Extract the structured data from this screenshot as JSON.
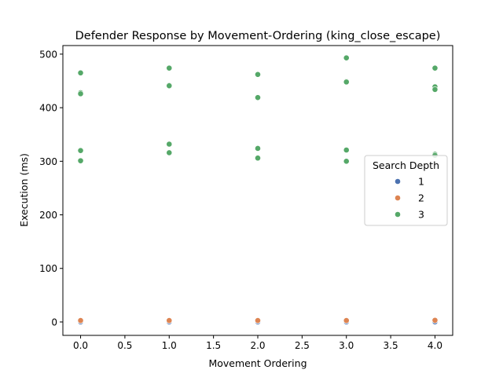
{
  "chart_data": {
    "type": "scatter",
    "title": "Defender Response by Movement-Ordering (king_close_escape)",
    "xlabel": "Movement Ordering",
    "ylabel": "Execution (ms)",
    "xlim": [
      -0.2,
      4.2
    ],
    "ylim": [
      -25,
      516
    ],
    "x_ticks": [
      0.0,
      0.5,
      1.0,
      1.5,
      2.0,
      2.5,
      3.0,
      3.5,
      4.0
    ],
    "x_tick_labels": [
      "0.0",
      "0.5",
      "1.0",
      "1.5",
      "2.0",
      "2.5",
      "3.0",
      "3.5",
      "4.0"
    ],
    "y_ticks": [
      0,
      100,
      200,
      300,
      400,
      500
    ],
    "y_tick_labels": [
      "0",
      "100",
      "200",
      "300",
      "400",
      "500"
    ],
    "grid": false,
    "legend": {
      "title": "Search Depth",
      "placement": "center-right"
    },
    "series": [
      {
        "name": "1",
        "color": "#4c72b0",
        "points": [
          [
            0,
            0.2
          ],
          [
            0,
            0.4
          ],
          [
            0,
            0.3
          ],
          [
            1,
            0.2
          ],
          [
            1,
            0.4
          ],
          [
            1,
            0.3
          ],
          [
            2,
            0.2
          ],
          [
            2,
            0.4
          ],
          [
            2,
            0.3
          ],
          [
            3,
            0.2
          ],
          [
            3,
            0.4
          ],
          [
            3,
            0.3
          ],
          [
            4,
            0.2
          ],
          [
            4,
            0.4
          ],
          [
            4,
            0.3
          ]
        ]
      },
      {
        "name": "2",
        "color": "#dd8452",
        "points": [
          [
            0,
            2.5
          ],
          [
            0,
            3.0
          ],
          [
            0,
            2.8
          ],
          [
            1,
            2.5
          ],
          [
            1,
            3.0
          ],
          [
            1,
            2.8
          ],
          [
            2,
            2.5
          ],
          [
            2,
            3.0
          ],
          [
            2,
            2.8
          ],
          [
            3,
            2.5
          ],
          [
            3,
            3.0
          ],
          [
            3,
            2.8
          ],
          [
            4,
            3.0
          ],
          [
            4,
            3.5
          ],
          [
            4,
            3.2
          ]
        ]
      },
      {
        "name": "3",
        "color": "#55a868",
        "points": [
          [
            0,
            465
          ],
          [
            0,
            428
          ],
          [
            0,
            426
          ],
          [
            0,
            320
          ],
          [
            0,
            301
          ],
          [
            1,
            474
          ],
          [
            1,
            442
          ],
          [
            1,
            441
          ],
          [
            1,
            332
          ],
          [
            1,
            316
          ],
          [
            2,
            462
          ],
          [
            2,
            419
          ],
          [
            2,
            324
          ],
          [
            2,
            306
          ],
          [
            3,
            493
          ],
          [
            3,
            449
          ],
          [
            3,
            448
          ],
          [
            3,
            321
          ],
          [
            3,
            300
          ],
          [
            4,
            474
          ],
          [
            4,
            439
          ],
          [
            4,
            434
          ],
          [
            4,
            313
          ],
          [
            4,
            311
          ]
        ]
      }
    ]
  }
}
